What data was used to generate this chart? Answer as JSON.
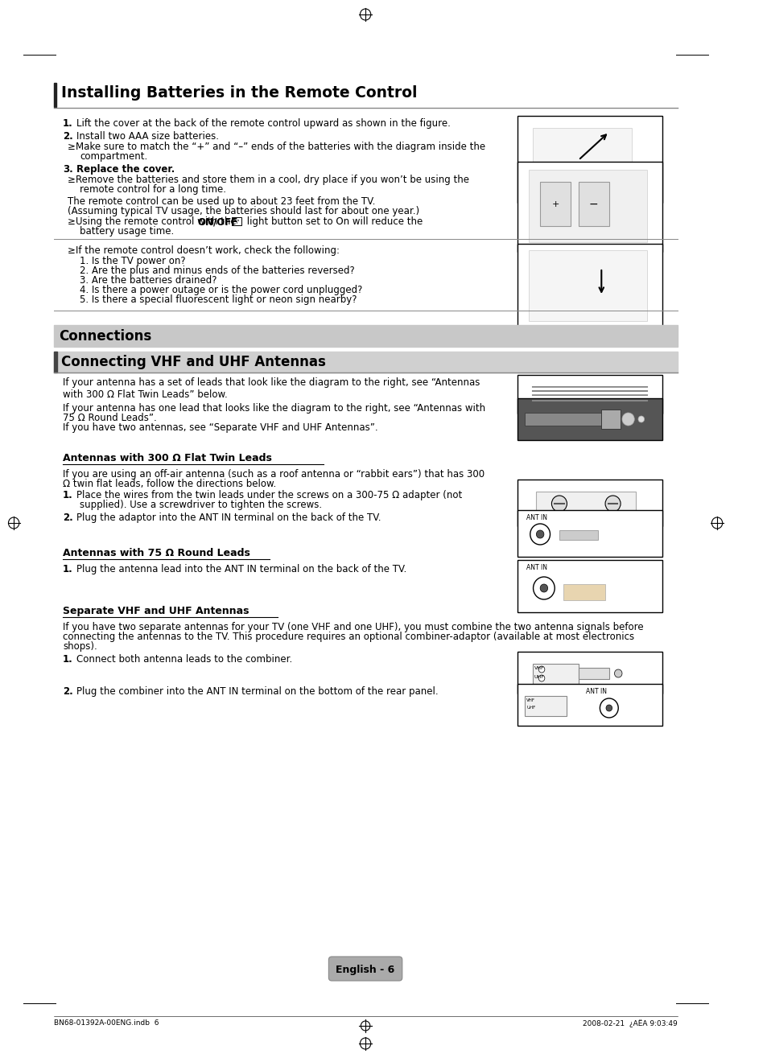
{
  "page_bg": "#ffffff",
  "section1_title": "Installing Batteries in the Remote Control",
  "connections_title": "Connections",
  "vhf_title": "Connecting VHF and UHF Antennas",
  "footer_text": "English - 6",
  "footer_bg": "#aaaaaa",
  "bottom_left": "BN68-01392A-00ENG.indb  6",
  "bottom_right": "2008-02-21  ¿AËA 9:03:49",
  "section1_note": [
    "1. Is the TV power on?",
    "2. Are the plus and minus ends of the batteries reversed?",
    "3. Are the batteries drained?",
    "4. Is there a power outage or is the power cord unplugged?",
    "5. Is there a special fluorescent light or neon sign nearby?"
  ],
  "vhf_body1": "If your antenna has a set of leads that look like the diagram to the right, see “Antennas\nwith 300 Ω Flat Twin Leads” below.",
  "vhf_body2_line1": "If your antenna has one lead that looks like the diagram to the right, see “Antennas with",
  "vhf_body2_line2": "75 Ω Round Leads”.",
  "vhf_body2_line3": "If you have two antennas, see “Separate VHF and UHF Antennas”.",
  "antenna300_title": "Antennas with 300 Ω Flat Twin Leads",
  "antenna300_intro1": "If you are using an off-air antenna (such as a roof antenna or “rabbit ears”) that has 300",
  "antenna300_intro2": "Ω twin flat leads, follow the directions below.",
  "antenna300_step1a": "Place the wires from the twin leads under the screws on a 300-75 Ω adapter (not",
  "antenna300_step1b": "supplied). Use a screwdriver to tighten the screws.",
  "antenna300_step2": "Plug the adaptor into the ANT IN terminal on the back of the TV.",
  "antenna75_title": "Antennas with 75 Ω Round Leads",
  "antenna75_step1": "Plug the antenna lead into the ANT IN terminal on the back of the TV.",
  "separate_title": "Separate VHF and UHF Antennas",
  "separate_intro1": "If you have two separate antennas for your TV (one VHF and one UHF), you must combine the two antenna signals before",
  "separate_intro2": "connecting the antennas to the TV. This procedure requires an optional combiner-adaptor (available at most electronics",
  "separate_intro3": "shops).",
  "separate_step1": "Connect both antenna leads to the combiner.",
  "separate_step2": "Plug the combiner into the ANT IN terminal on the bottom of the rear panel."
}
